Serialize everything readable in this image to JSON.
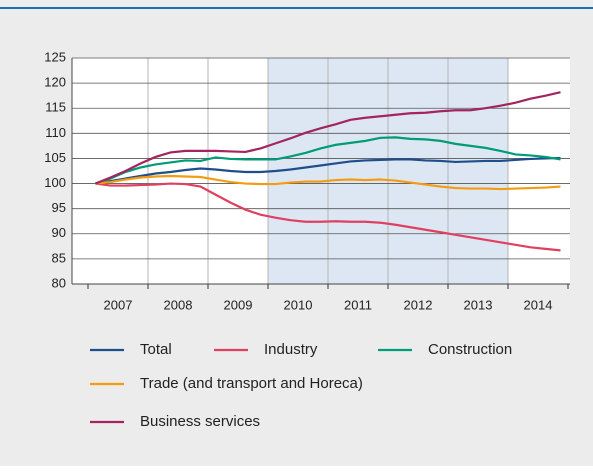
{
  "chart_data": {
    "type": "line",
    "categories": [
      "2007",
      null,
      null,
      null,
      "2008",
      null,
      null,
      null,
      "2009",
      null,
      null,
      null,
      "2010",
      null,
      null,
      null,
      "2011",
      null,
      null,
      null,
      "2012",
      null,
      null,
      null,
      "2013",
      null,
      null,
      null,
      "2014",
      null,
      null,
      null
    ],
    "shaded": {
      "from": 12,
      "to": 27
    },
    "ylim": [
      80,
      125
    ],
    "yticks": [
      80,
      85,
      90,
      95,
      100,
      105,
      110,
      115,
      120,
      125
    ],
    "grid": true,
    "series": [
      {
        "name": "Total",
        "color": "#1f4e8c",
        "values": [
          100,
          100.5,
          101,
          101.5,
          102,
          102.3,
          102.7,
          103,
          102.8,
          102.5,
          102.3,
          102.3,
          102.5,
          102.8,
          103.2,
          103.6,
          104,
          104.4,
          104.6,
          104.7,
          104.8,
          104.8,
          104.6,
          104.5,
          104.3,
          104.4,
          104.5,
          104.5,
          104.7,
          104.9,
          105,
          105.1
        ]
      },
      {
        "name": "Industry",
        "color": "#e0405f",
        "values": [
          100,
          99.6,
          99.6,
          99.7,
          99.8,
          100,
          99.9,
          99.4,
          97.8,
          96.2,
          94.8,
          93.8,
          93.2,
          92.7,
          92.4,
          92.4,
          92.5,
          92.4,
          92.4,
          92.2,
          91.8,
          91.3,
          90.8,
          90.3,
          89.8,
          89.3,
          88.8,
          88.3,
          87.8,
          87.3,
          87,
          86.7
        ]
      },
      {
        "name": "Construction",
        "color": "#009b77",
        "values": [
          100,
          101,
          102.3,
          103.2,
          103.8,
          104.2,
          104.6,
          104.5,
          105.2,
          104.9,
          104.8,
          104.8,
          104.8,
          105.4,
          106.1,
          107,
          107.7,
          108.1,
          108.5,
          109.1,
          109.2,
          108.9,
          108.8,
          108.5,
          107.9,
          107.5,
          107.1,
          106.5,
          105.8,
          105.6,
          105.3,
          104.8
        ]
      },
      {
        "name": "Trade (and transport and Horeca)",
        "color": "#f39c12",
        "values": [
          100,
          100.3,
          100.8,
          101.2,
          101.4,
          101.5,
          101.4,
          101.3,
          100.8,
          100.3,
          100,
          99.9,
          99.9,
          100.2,
          100.4,
          100.4,
          100.7,
          100.8,
          100.7,
          100.8,
          100.6,
          100.2,
          99.8,
          99.4,
          99.1,
          99,
          99,
          98.9,
          99,
          99.1,
          99.2,
          99.4
        ]
      },
      {
        "name": "Business services",
        "color": "#a3245f",
        "values": [
          100,
          101.2,
          102.5,
          104,
          105.3,
          106.2,
          106.5,
          106.5,
          106.5,
          106.4,
          106.3,
          107,
          108,
          109,
          110.1,
          111,
          111.8,
          112.7,
          113.1,
          113.4,
          113.7,
          114,
          114.1,
          114.4,
          114.6,
          114.6,
          115,
          115.5,
          116.1,
          116.9,
          117.5,
          118.2
        ]
      }
    ]
  }
}
